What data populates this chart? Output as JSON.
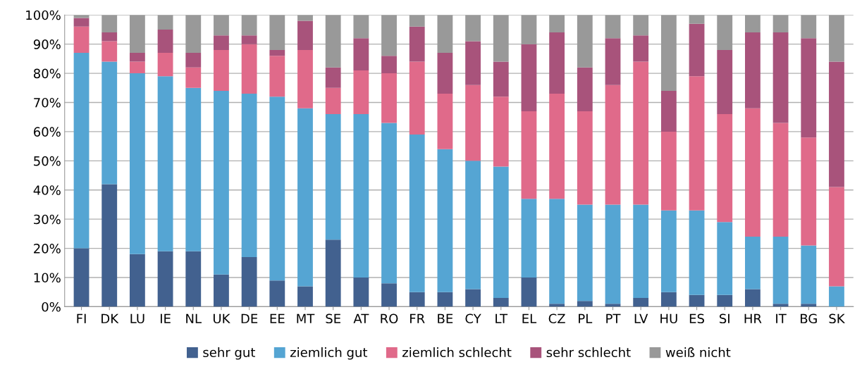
{
  "chart_data": {
    "type": "bar",
    "stacked": true,
    "categories": [
      "FI",
      "DK",
      "LU",
      "IE",
      "NL",
      "UK",
      "DE",
      "EE",
      "MT",
      "SE",
      "AT",
      "RO",
      "FR",
      "BE",
      "CY",
      "LT",
      "EL",
      "CZ",
      "PL",
      "PT",
      "LV",
      "HU",
      "ES",
      "SI",
      "HR",
      "IT",
      "BG",
      "SK"
    ],
    "series": [
      {
        "name": "sehr gut",
        "color": "#42618f",
        "values": [
          20,
          42,
          18,
          19,
          19,
          11,
          17,
          9,
          7,
          23,
          10,
          8,
          5,
          5,
          6,
          3,
          10,
          1,
          2,
          1,
          3,
          5,
          4,
          4,
          6,
          1,
          1,
          0
        ]
      },
      {
        "name": "ziemlich gut",
        "color": "#55a5d3",
        "values": [
          67,
          42,
          62,
          60,
          56,
          63,
          56,
          63,
          61,
          43,
          56,
          55,
          54,
          49,
          44,
          45,
          27,
          36,
          33,
          34,
          32,
          28,
          29,
          25,
          18,
          23,
          20,
          7
        ]
      },
      {
        "name": "ziemlich schlecht",
        "color": "#e06a8a",
        "values": [
          9,
          7,
          4,
          8,
          7,
          14,
          17,
          14,
          20,
          9,
          15,
          17,
          25,
          19,
          26,
          24,
          30,
          36,
          32,
          41,
          49,
          27,
          46,
          37,
          44,
          39,
          37,
          34
        ]
      },
      {
        "name": "sehr schlecht",
        "color": "#a8537b",
        "values": [
          3,
          3,
          3,
          8,
          5,
          5,
          3,
          2,
          10,
          7,
          11,
          6,
          12,
          14,
          15,
          12,
          23,
          21,
          15,
          16,
          9,
          14,
          18,
          22,
          26,
          31,
          34,
          43
        ]
      },
      {
        "name": "weiß nicht",
        "color": "#999999",
        "values": [
          1,
          6,
          13,
          5,
          13,
          7,
          7,
          12,
          2,
          18,
          8,
          14,
          4,
          13,
          9,
          16,
          10,
          6,
          18,
          8,
          7,
          26,
          3,
          12,
          6,
          6,
          8,
          16
        ]
      }
    ],
    "ylim": [
      0,
      100
    ],
    "yticks": [
      {
        "value": 0,
        "label": "0%"
      },
      {
        "value": 10,
        "label": "10%"
      },
      {
        "value": 20,
        "label": "20%"
      },
      {
        "value": 30,
        "label": "30%"
      },
      {
        "value": 40,
        "label": "40%"
      },
      {
        "value": 50,
        "label": "50%"
      },
      {
        "value": 60,
        "label": "60%"
      },
      {
        "value": 70,
        "label": "70%"
      },
      {
        "value": 80,
        "label": "80%"
      },
      {
        "value": 90,
        "label": "90%"
      },
      {
        "value": 100,
        "label": "100%"
      }
    ],
    "grid": "y",
    "legend": "bottom"
  }
}
